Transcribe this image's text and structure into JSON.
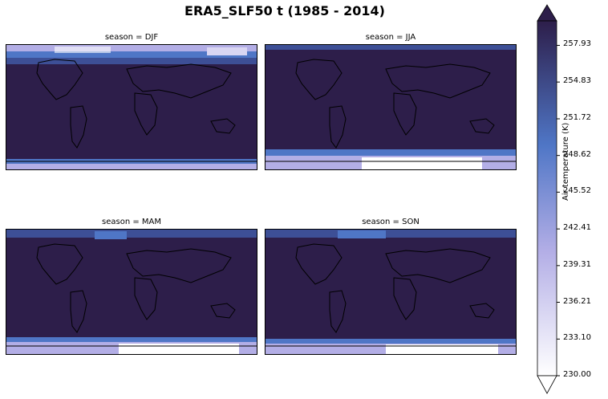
{
  "title": "ERA5_SLF50 t (1985 - 2014)",
  "chart_data": {
    "type": "heatmap",
    "title": "ERA5_SLF50 t (1985 - 2014)",
    "panels": [
      {
        "name": "season = DJF",
        "season": "DJF",
        "polar_cold": "north"
      },
      {
        "name": "season = JJA",
        "season": "JJA",
        "polar_cold": "south"
      },
      {
        "name": "season = MAM",
        "season": "MAM",
        "polar_cold": "south"
      },
      {
        "name": "season = SON",
        "season": "SON",
        "polar_cold": "south"
      }
    ],
    "colorbar": {
      "label": "Air temperature (K)",
      "min": 230.0,
      "max": 260.0,
      "extend": "both",
      "ticks": [
        "230.00",
        "233.10",
        "236.21",
        "239.31",
        "242.41",
        "245.52",
        "248.62",
        "251.72",
        "254.83",
        "257.93"
      ],
      "colors": [
        "#ffffff",
        "#b3aee6",
        "#4f76c6",
        "#2d1e4a"
      ]
    }
  }
}
